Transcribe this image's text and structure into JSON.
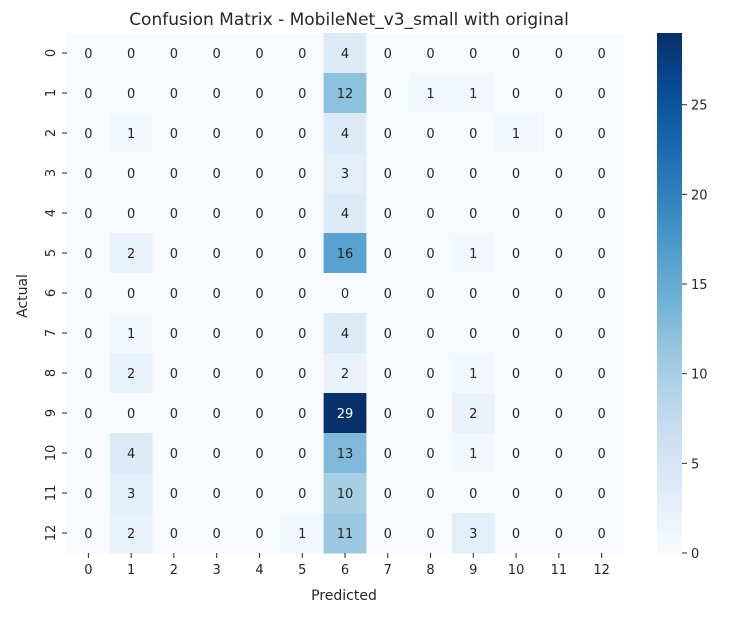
{
  "chart_data": {
    "type": "heatmap",
    "title": "Confusion Matrix - MobileNet_v3_small with original",
    "xlabel": "Predicted",
    "ylabel": "Actual",
    "x_categories": [
      "0",
      "1",
      "2",
      "3",
      "4",
      "5",
      "6",
      "7",
      "8",
      "9",
      "10",
      "11",
      "12"
    ],
    "y_categories": [
      "0",
      "1",
      "2",
      "3",
      "4",
      "5",
      "6",
      "7",
      "8",
      "9",
      "10",
      "11",
      "12"
    ],
    "values": [
      [
        0,
        0,
        0,
        0,
        0,
        0,
        4,
        0,
        0,
        0,
        0,
        0,
        0
      ],
      [
        0,
        0,
        0,
        0,
        0,
        0,
        12,
        0,
        1,
        1,
        0,
        0,
        0
      ],
      [
        0,
        1,
        0,
        0,
        0,
        0,
        4,
        0,
        0,
        0,
        1,
        0,
        0
      ],
      [
        0,
        0,
        0,
        0,
        0,
        0,
        3,
        0,
        0,
        0,
        0,
        0,
        0
      ],
      [
        0,
        0,
        0,
        0,
        0,
        0,
        4,
        0,
        0,
        0,
        0,
        0,
        0
      ],
      [
        0,
        2,
        0,
        0,
        0,
        0,
        16,
        0,
        0,
        1,
        0,
        0,
        0
      ],
      [
        0,
        0,
        0,
        0,
        0,
        0,
        0,
        0,
        0,
        0,
        0,
        0,
        0
      ],
      [
        0,
        1,
        0,
        0,
        0,
        0,
        4,
        0,
        0,
        0,
        0,
        0,
        0
      ],
      [
        0,
        2,
        0,
        0,
        0,
        0,
        2,
        0,
        0,
        1,
        0,
        0,
        0
      ],
      [
        0,
        0,
        0,
        0,
        0,
        0,
        29,
        0,
        0,
        2,
        0,
        0,
        0
      ],
      [
        0,
        4,
        0,
        0,
        0,
        0,
        13,
        0,
        0,
        1,
        0,
        0,
        0
      ],
      [
        0,
        3,
        0,
        0,
        0,
        0,
        10,
        0,
        0,
        0,
        0,
        0,
        0
      ],
      [
        0,
        2,
        0,
        0,
        0,
        1,
        11,
        0,
        0,
        3,
        0,
        0,
        0
      ]
    ],
    "colormap": "Blues",
    "colorbar": {
      "min": 0,
      "max": 29,
      "ticks": [
        0,
        5,
        10,
        15,
        20,
        25
      ]
    },
    "colors": {
      "low": "#f7fbff",
      "high": "#08306b",
      "text_dark": "#262626",
      "text_light": "#ffffff"
    }
  }
}
